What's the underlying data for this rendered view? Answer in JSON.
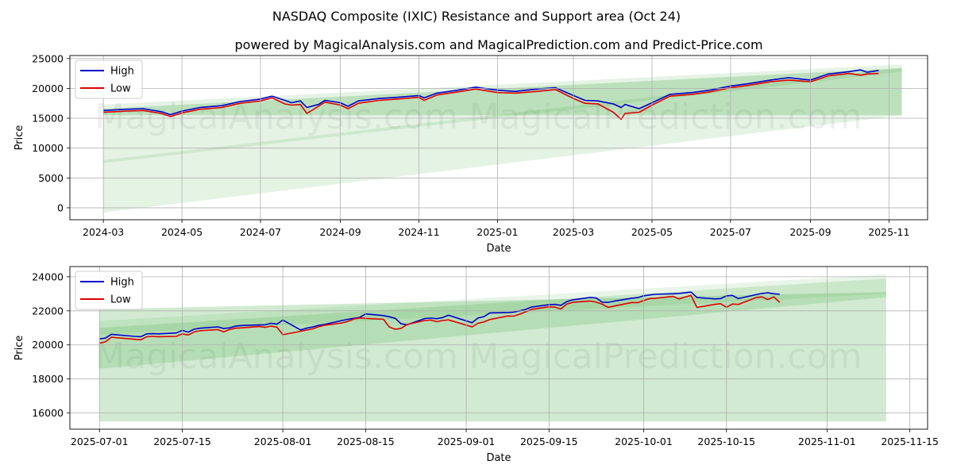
{
  "page": {
    "title": "NASDAQ Composite (IXIC) Resistance and Support area (Oct 24)",
    "subtitle": "powered by MagicalAnalysis.com and MagicalPrediction.com and Predict-Price.com",
    "watermark_left": "MagicalAnalysis.com",
    "watermark_right": "MagicalPrediction.com"
  },
  "colors": {
    "high": "#0000cc",
    "low": "#e00000",
    "band": "#2ca02c",
    "grid": "#b0b0b0"
  },
  "chart_data": [
    {
      "type": "line",
      "title": "",
      "xlabel": "Date",
      "ylabel": "Price",
      "grid": true,
      "legend": "top-left",
      "xlim": [
        "2024-02-04",
        "2025-12-01"
      ],
      "ylim": [
        -2000,
        25500
      ],
      "x_ticks": [
        "2024-03-01",
        "2024-05-01",
        "2024-07-01",
        "2024-09-01",
        "2024-11-01",
        "2025-01-01",
        "2025-03-01",
        "2025-05-01",
        "2025-07-01",
        "2025-09-01",
        "2025-11-01"
      ],
      "x_tick_labels": [
        "2024-03",
        "2024-05",
        "2024-07",
        "2024-09",
        "2024-11",
        "2025-01",
        "2025-03",
        "2025-05",
        "2025-07",
        "2025-09",
        "2025-11"
      ],
      "y_ticks": [
        0,
        5000,
        10000,
        15000,
        20000,
        25000
      ],
      "y_tick_labels": [
        "0",
        "5000",
        "10000",
        "15000",
        "20000",
        "25000"
      ],
      "bands": [
        {
          "x": [
            "2024-03-01",
            "2025-11-11"
          ],
          "upper": [
            17300,
            24000
          ],
          "lower": [
            -800,
            15500
          ],
          "opacity": 0.12
        },
        {
          "x": [
            "2024-03-01",
            "2025-11-11"
          ],
          "upper": [
            16600,
            23400
          ],
          "lower": [
            15500,
            15500
          ],
          "opacity": 0.22
        },
        {
          "x": [
            "2024-03-01",
            "2025-11-11"
          ],
          "upper": [
            8000,
            23400
          ],
          "lower": [
            7500,
            22800
          ],
          "opacity": 0.12
        }
      ],
      "series": [
        {
          "name": "High",
          "x": [
            "2024-03-01",
            "2024-03-10",
            "2024-03-20",
            "2024-04-01",
            "2024-04-15",
            "2024-04-22",
            "2024-05-01",
            "2024-05-15",
            "2024-06-01",
            "2024-06-15",
            "2024-07-01",
            "2024-07-10",
            "2024-07-20",
            "2024-07-25",
            "2024-08-01",
            "2024-08-06",
            "2024-08-15",
            "2024-08-20",
            "2024-09-01",
            "2024-09-07",
            "2024-09-15",
            "2024-10-01",
            "2024-10-15",
            "2024-11-01",
            "2024-11-05",
            "2024-11-15",
            "2024-12-01",
            "2024-12-15",
            "2025-01-01",
            "2025-01-15",
            "2025-02-01",
            "2025-02-15",
            "2025-03-01",
            "2025-03-10",
            "2025-03-20",
            "2025-04-01",
            "2025-04-07",
            "2025-04-10",
            "2025-04-21",
            "2025-05-01",
            "2025-05-15",
            "2025-06-01",
            "2025-06-15",
            "2025-07-01",
            "2025-07-15",
            "2025-08-01",
            "2025-08-15",
            "2025-09-01",
            "2025-09-15",
            "2025-10-01",
            "2025-10-10",
            "2025-10-15",
            "2025-10-24"
          ],
          "values": [
            16300,
            16400,
            16500,
            16600,
            16100,
            15600,
            16200,
            16800,
            17100,
            17800,
            18200,
            18700,
            18000,
            17600,
            17900,
            16800,
            17300,
            18000,
            17600,
            17000,
            17900,
            18300,
            18500,
            18800,
            18400,
            19200,
            19700,
            20200,
            19700,
            19500,
            19900,
            20100,
            18800,
            18000,
            17900,
            17400,
            16800,
            17300,
            16600,
            17600,
            19000,
            19300,
            19700,
            20400,
            20800,
            21400,
            21800,
            21400,
            22400,
            22800,
            23100,
            22700,
            23000
          ]
        },
        {
          "name": "Low",
          "x": [
            "2024-03-01",
            "2024-03-10",
            "2024-03-20",
            "2024-04-01",
            "2024-04-15",
            "2024-04-22",
            "2024-05-01",
            "2024-05-15",
            "2024-06-01",
            "2024-06-15",
            "2024-07-01",
            "2024-07-10",
            "2024-07-20",
            "2024-07-25",
            "2024-08-01",
            "2024-08-06",
            "2024-08-15",
            "2024-08-20",
            "2024-09-01",
            "2024-09-07",
            "2024-09-15",
            "2024-10-01",
            "2024-10-15",
            "2024-11-01",
            "2024-11-05",
            "2024-11-15",
            "2024-12-01",
            "2024-12-15",
            "2025-01-01",
            "2025-01-15",
            "2025-02-01",
            "2025-02-15",
            "2025-03-01",
            "2025-03-10",
            "2025-03-20",
            "2025-04-01",
            "2025-04-07",
            "2025-04-10",
            "2025-04-21",
            "2025-05-01",
            "2025-05-15",
            "2025-06-01",
            "2025-06-15",
            "2025-07-01",
            "2025-07-15",
            "2025-08-01",
            "2025-08-15",
            "2025-09-01",
            "2025-09-15",
            "2025-10-01",
            "2025-10-10",
            "2025-10-15",
            "2025-10-24"
          ],
          "values": [
            16000,
            16100,
            16200,
            16300,
            15800,
            15300,
            15900,
            16500,
            16800,
            17500,
            17900,
            18400,
            17400,
            17200,
            17300,
            15800,
            17000,
            17700,
            17200,
            16600,
            17500,
            18000,
            18200,
            18500,
            18000,
            18900,
            19400,
            19900,
            19300,
            19200,
            19500,
            19800,
            18300,
            17500,
            17400,
            16000,
            14800,
            15800,
            16000,
            17200,
            18700,
            19000,
            19400,
            20100,
            20500,
            21100,
            21400,
            21100,
            22100,
            22500,
            22200,
            22400,
            22500
          ]
        }
      ]
    },
    {
      "type": "line",
      "title": "",
      "xlabel": "Date",
      "ylabel": "Price",
      "grid": true,
      "legend": "top-left",
      "xlim": [
        "2025-06-26",
        "2025-11-18"
      ],
      "ylim": [
        15050,
        24600
      ],
      "x_ticks": [
        "2025-07-01",
        "2025-07-15",
        "2025-08-01",
        "2025-08-15",
        "2025-09-01",
        "2025-09-15",
        "2025-10-01",
        "2025-10-15",
        "2025-11-01",
        "2025-11-15"
      ],
      "x_tick_labels": [
        "2025-07-01",
        "2025-07-15",
        "2025-08-01",
        "2025-08-15",
        "2025-09-01",
        "2025-09-15",
        "2025-10-01",
        "2025-10-15",
        "2025-11-01",
        "2025-11-15"
      ],
      "y_ticks": [
        16000,
        18000,
        20000,
        22000,
        24000
      ],
      "y_tick_labels": [
        "16000",
        "18000",
        "20000",
        "22000",
        "24000"
      ],
      "bands": [
        {
          "x": [
            "2025-07-01",
            "2025-11-11"
          ],
          "upper": [
            22100,
            23100
          ],
          "lower": [
            15500,
            15500
          ],
          "opacity": 0.22
        },
        {
          "x": [
            "2025-07-01",
            "2025-11-11"
          ],
          "upper": [
            21000,
            23900
          ],
          "lower": [
            18600,
            22800
          ],
          "opacity": 0.16
        },
        {
          "x": [
            "2025-07-01",
            "2025-11-11"
          ],
          "upper": [
            21400,
            24150
          ],
          "lower": [
            20600,
            23000
          ],
          "opacity": 0.1
        }
      ],
      "series": [
        {
          "name": "High",
          "x": [
            "2025-07-01",
            "2025-07-02",
            "2025-07-03",
            "2025-07-07",
            "2025-07-08",
            "2025-07-09",
            "2025-07-10",
            "2025-07-11",
            "2025-07-14",
            "2025-07-15",
            "2025-07-16",
            "2025-07-17",
            "2025-07-18",
            "2025-07-21",
            "2025-07-22",
            "2025-07-23",
            "2025-07-24",
            "2025-07-25",
            "2025-07-28",
            "2025-07-29",
            "2025-07-30",
            "2025-07-31",
            "2025-08-01",
            "2025-08-04",
            "2025-08-05",
            "2025-08-06",
            "2025-08-07",
            "2025-08-08",
            "2025-08-11",
            "2025-08-12",
            "2025-08-13",
            "2025-08-14",
            "2025-08-15",
            "2025-08-18",
            "2025-08-19",
            "2025-08-20",
            "2025-08-21",
            "2025-08-22",
            "2025-08-25",
            "2025-08-26",
            "2025-08-27",
            "2025-08-28",
            "2025-08-29",
            "2025-09-02",
            "2025-09-03",
            "2025-09-04",
            "2025-09-05",
            "2025-09-08",
            "2025-09-09",
            "2025-09-10",
            "2025-09-11",
            "2025-09-12",
            "2025-09-15",
            "2025-09-16",
            "2025-09-17",
            "2025-09-18",
            "2025-09-19",
            "2025-09-22",
            "2025-09-23",
            "2025-09-24",
            "2025-09-25",
            "2025-09-26",
            "2025-09-29",
            "2025-09-30",
            "2025-10-01",
            "2025-10-02",
            "2025-10-03",
            "2025-10-06",
            "2025-10-07",
            "2025-10-08",
            "2025-10-09",
            "2025-10-10",
            "2025-10-13",
            "2025-10-14",
            "2025-10-15",
            "2025-10-16",
            "2025-10-17",
            "2025-10-20",
            "2025-10-21",
            "2025-10-22",
            "2025-10-23",
            "2025-10-24"
          ],
          "values": [
            20350,
            20400,
            20620,
            20500,
            20480,
            20650,
            20660,
            20650,
            20700,
            20850,
            20750,
            20920,
            20980,
            21060,
            20960,
            21000,
            21100,
            21140,
            21170,
            21180,
            21270,
            21220,
            21460,
            20880,
            20980,
            21050,
            21150,
            21200,
            21430,
            21500,
            21560,
            21620,
            21820,
            21720,
            21650,
            21560,
            21240,
            21180,
            21550,
            21570,
            21540,
            21600,
            21740,
            21300,
            21580,
            21660,
            21880,
            21900,
            21920,
            22000,
            22080,
            22220,
            22360,
            22380,
            22320,
            22540,
            22650,
            22790,
            22750,
            22510,
            22500,
            22570,
            22740,
            22780,
            22880,
            22930,
            22970,
            23000,
            23020,
            23060,
            23100,
            22790,
            22700,
            22720,
            22880,
            22910,
            22720,
            22950,
            23020,
            23060,
            23000,
            22980
          ]
        },
        {
          "name": "Low",
          "x": [
            "2025-07-01",
            "2025-07-02",
            "2025-07-03",
            "2025-07-07",
            "2025-07-08",
            "2025-07-09",
            "2025-07-10",
            "2025-07-11",
            "2025-07-14",
            "2025-07-15",
            "2025-07-16",
            "2025-07-17",
            "2025-07-18",
            "2025-07-21",
            "2025-07-22",
            "2025-07-23",
            "2025-07-24",
            "2025-07-25",
            "2025-07-28",
            "2025-07-29",
            "2025-07-30",
            "2025-07-31",
            "2025-08-01",
            "2025-08-04",
            "2025-08-05",
            "2025-08-06",
            "2025-08-07",
            "2025-08-08",
            "2025-08-11",
            "2025-08-12",
            "2025-08-13",
            "2025-08-14",
            "2025-08-15",
            "2025-08-18",
            "2025-08-19",
            "2025-08-20",
            "2025-08-21",
            "2025-08-22",
            "2025-08-25",
            "2025-08-26",
            "2025-08-27",
            "2025-08-28",
            "2025-08-29",
            "2025-09-02",
            "2025-09-03",
            "2025-09-04",
            "2025-09-05",
            "2025-09-08",
            "2025-09-09",
            "2025-09-10",
            "2025-09-11",
            "2025-09-12",
            "2025-09-15",
            "2025-09-16",
            "2025-09-17",
            "2025-09-18",
            "2025-09-19",
            "2025-09-22",
            "2025-09-23",
            "2025-09-24",
            "2025-09-25",
            "2025-09-26",
            "2025-09-29",
            "2025-09-30",
            "2025-10-01",
            "2025-10-02",
            "2025-10-03",
            "2025-10-06",
            "2025-10-07",
            "2025-10-08",
            "2025-10-09",
            "2025-10-10",
            "2025-10-13",
            "2025-10-14",
            "2025-10-15",
            "2025-10-16",
            "2025-10-17",
            "2025-10-20",
            "2025-10-21",
            "2025-10-22",
            "2025-10-23",
            "2025-10-24"
          ],
          "values": [
            20100,
            20180,
            20450,
            20330,
            20300,
            20480,
            20500,
            20480,
            20500,
            20650,
            20580,
            20760,
            20830,
            20900,
            20760,
            20900,
            20980,
            21000,
            21080,
            21030,
            21100,
            21040,
            20600,
            20800,
            20870,
            20940,
            21060,
            21150,
            21290,
            21380,
            21520,
            21580,
            21560,
            21500,
            21050,
            20920,
            20970,
            21200,
            21430,
            21460,
            21360,
            21430,
            21470,
            21060,
            21270,
            21350,
            21490,
            21700,
            21690,
            21800,
            21930,
            22080,
            22240,
            22220,
            22110,
            22400,
            22500,
            22580,
            22510,
            22390,
            22200,
            22280,
            22490,
            22480,
            22600,
            22720,
            22740,
            22850,
            22700,
            22810,
            22910,
            22200,
            22380,
            22420,
            22210,
            22400,
            22380,
            22780,
            22820,
            22660,
            22820,
            22500
          ]
        }
      ]
    }
  ]
}
